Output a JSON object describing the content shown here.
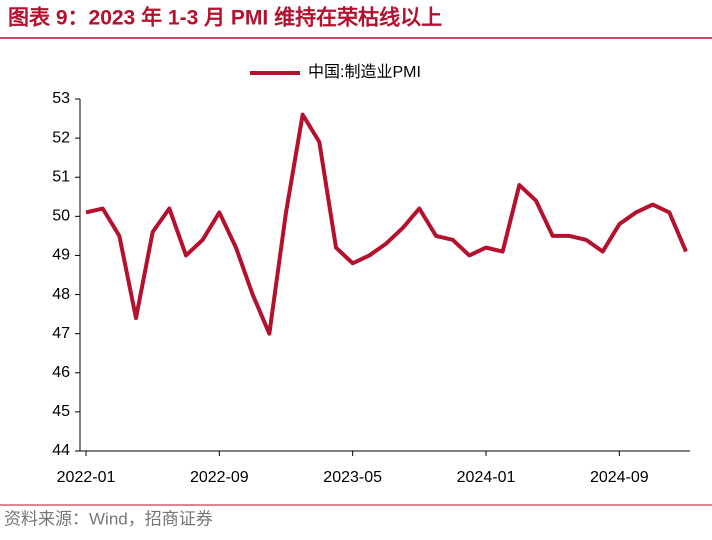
{
  "chart_data": {
    "type": "line",
    "title": "图表 9：2023 年 1-3 月 PMI 维持在荣枯线以上",
    "source": "资料来源：Wind，招商证券",
    "categories": [
      "2022-01",
      null,
      null,
      null,
      null,
      null,
      null,
      null,
      "2022-09",
      null,
      null,
      null,
      null,
      null,
      null,
      null,
      "2023-05",
      null,
      null,
      null,
      null,
      null,
      null,
      null,
      "2024-01",
      null,
      null,
      null,
      null,
      null,
      null,
      null,
      "2024-09",
      null,
      null,
      null,
      null
    ],
    "series": [
      {
        "name": "中国:制造业PMI",
        "color": "#b5102e",
        "values": [
          50.1,
          50.2,
          49.5,
          47.4,
          49.6,
          50.2,
          49.0,
          49.4,
          50.1,
          49.2,
          48.0,
          47.0,
          50.1,
          52.6,
          51.9,
          49.2,
          48.8,
          49.0,
          49.3,
          49.7,
          50.2,
          49.5,
          49.4,
          49.0,
          49.2,
          49.1,
          50.8,
          50.4,
          49.5,
          49.5,
          49.4,
          49.1,
          49.8,
          50.1,
          50.3,
          50.1,
          49.1
        ]
      }
    ],
    "ylim": [
      44,
      53
    ],
    "yticks": [
      44,
      45,
      46,
      47,
      48,
      49,
      50,
      51,
      52,
      53
    ],
    "legend": "top"
  }
}
